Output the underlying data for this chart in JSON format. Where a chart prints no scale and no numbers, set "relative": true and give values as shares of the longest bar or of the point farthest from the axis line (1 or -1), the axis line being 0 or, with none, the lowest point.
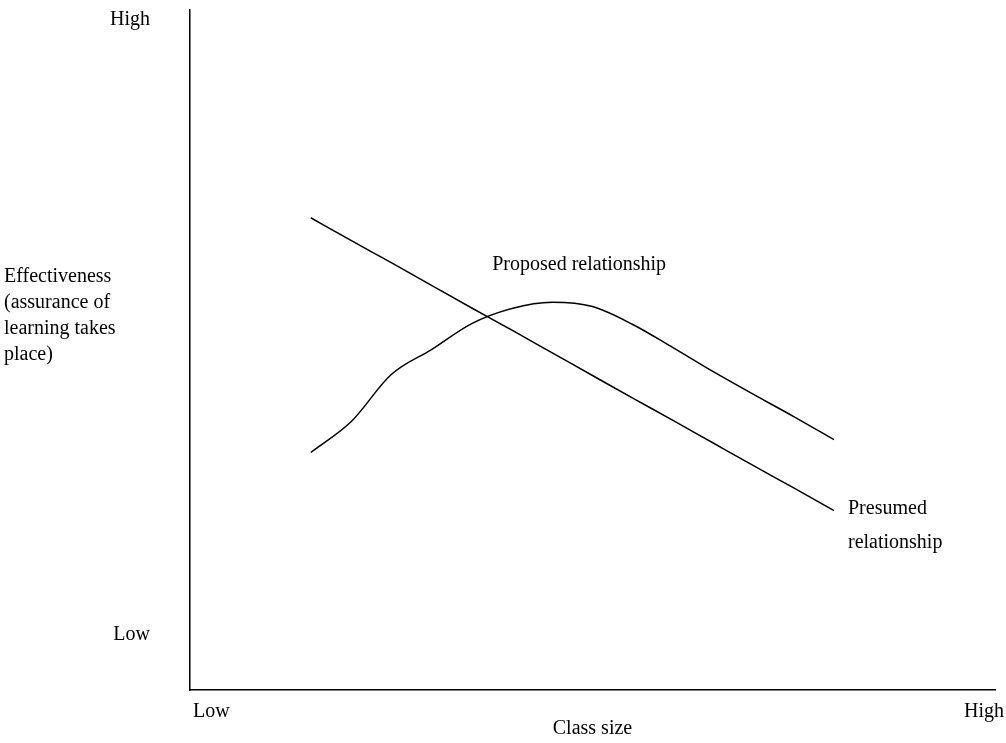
{
  "chart_data": {
    "type": "line",
    "xlabel": "Class size",
    "ylabel": "Effectiveness (assurance of learning takes place)",
    "relative": true,
    "categories": [
      null,
      null,
      null,
      null,
      null,
      null,
      null,
      null,
      null,
      null,
      null,
      null,
      null,
      null,
      null,
      null,
      null,
      null,
      null,
      null,
      null
    ],
    "annotations": [
      "High",
      "Low",
      "Low",
      "High"
    ],
    "grid": false,
    "legend": false,
    "marker": "none",
    "line_style": "solid",
    "series": [
      {
        "name": "Proposed relationship",
        "color": "#000000",
        "values": [
          null,
          null,
          null,
          0.503,
          0.568,
          0.668,
          0.721,
          0.776,
          0.808,
          0.821,
          0.812,
          0.774,
          0.725,
          0.674,
          0.626,
          0.579,
          0.53,
          null,
          null,
          null,
          null
        ]
      },
      {
        "name": "Presumed relationship",
        "color": "#000000",
        "values": [
          null,
          null,
          null,
          1.0,
          0.952,
          0.905,
          0.857,
          0.809,
          0.762,
          0.714,
          0.666,
          0.618,
          0.571,
          0.523,
          0.475,
          0.428,
          0.38,
          null,
          null,
          null,
          null
        ]
      }
    ]
  }
}
